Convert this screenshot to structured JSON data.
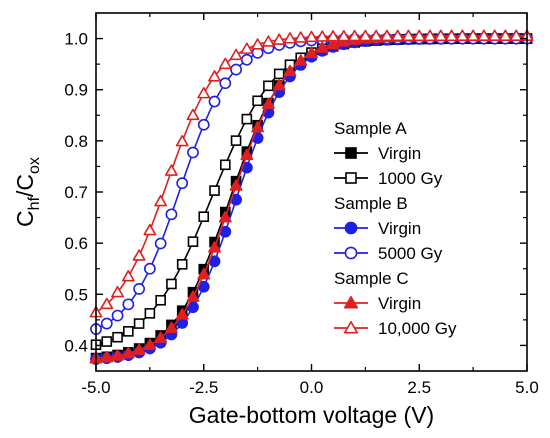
{
  "chart_data": {
    "type": "line",
    "title": "",
    "xlabel": "Gate-bottom voltage (V)",
    "ylabel_main": "C",
    "ylabel_sub1": "hf",
    "ylabel_slash": "/C",
    "ylabel_sub2": "ox",
    "xlim": [
      -5.0,
      5.0
    ],
    "ylim": [
      0.35,
      1.05
    ],
    "x_ticks": [
      -5.0,
      -2.5,
      0.0,
      2.5,
      5.0
    ],
    "x_tick_labels": [
      "-5.0",
      "-2.5",
      "0.0",
      "2.5",
      "5.0"
    ],
    "y_ticks": [
      0.4,
      0.5,
      0.6,
      0.7,
      0.8,
      0.9,
      1.0
    ],
    "y_tick_labels": [
      "0.4",
      "0.5",
      "0.6",
      "0.7",
      "0.8",
      "0.9",
      "1.0"
    ],
    "grid": false,
    "legend_placement": "right",
    "legend_groups": [
      {
        "title": "Sample A",
        "entries": [
          {
            "label": "Virgin",
            "color": "#000000",
            "marker": "square",
            "filled": true
          },
          {
            "label": "1000 Gy",
            "color": "#000000",
            "marker": "square",
            "filled": false
          }
        ]
      },
      {
        "title": "Sample B",
        "entries": [
          {
            "label": "Virgin",
            "color": "#1f1fe6",
            "marker": "circle",
            "filled": true
          },
          {
            "label": "5000 Gy",
            "color": "#1f1fe6",
            "marker": "circle",
            "filled": false
          }
        ]
      },
      {
        "title": "Sample C",
        "entries": [
          {
            "label": "Virgin",
            "color": "#e02020",
            "marker": "triangle",
            "filled": true
          },
          {
            "label": "10,000 Gy",
            "color": "#e02020",
            "marker": "triangle",
            "filled": false
          }
        ]
      }
    ],
    "series": [
      {
        "color": "#000000",
        "marker": "square",
        "filled": true,
        "x_start": -5.0,
        "x_end": 5.0,
        "step": 0.25,
        "y_min": 0.37,
        "y_max": 1.0,
        "v_mid": -1.9,
        "width": 0.65
      },
      {
        "color": "#000000",
        "marker": "square",
        "filled": false,
        "x_start": -5.0,
        "x_end": 5.0,
        "step": 0.25,
        "y_min": 0.385,
        "y_max": 1.0,
        "v_mid": -2.3,
        "width": 0.75
      },
      {
        "color": "#1f1fe6",
        "marker": "circle",
        "filled": true,
        "x_start": -5.0,
        "x_end": 5.0,
        "step": 0.25,
        "y_min": 0.37,
        "y_max": 1.0,
        "v_mid": -1.75,
        "width": 0.62
      },
      {
        "color": "#1f1fe6",
        "marker": "circle",
        "filled": false,
        "x_start": -5.0,
        "x_end": 5.0,
        "step": 0.25,
        "y_min": 0.41,
        "y_max": 1.0,
        "v_mid": -3.05,
        "width": 0.6
      },
      {
        "color": "#e02020",
        "marker": "triangle",
        "filled": true,
        "x_start": -5.0,
        "x_end": 5.0,
        "step": 0.25,
        "y_min": 0.37,
        "y_max": 1.005,
        "v_mid": -1.85,
        "width": 0.64
      },
      {
        "color": "#e02020",
        "marker": "triangle",
        "filled": false,
        "x_start": -5.0,
        "x_end": 5.0,
        "step": 0.25,
        "y_min": 0.43,
        "y_max": 1.005,
        "v_mid": -3.35,
        "width": 0.6
      }
    ]
  }
}
